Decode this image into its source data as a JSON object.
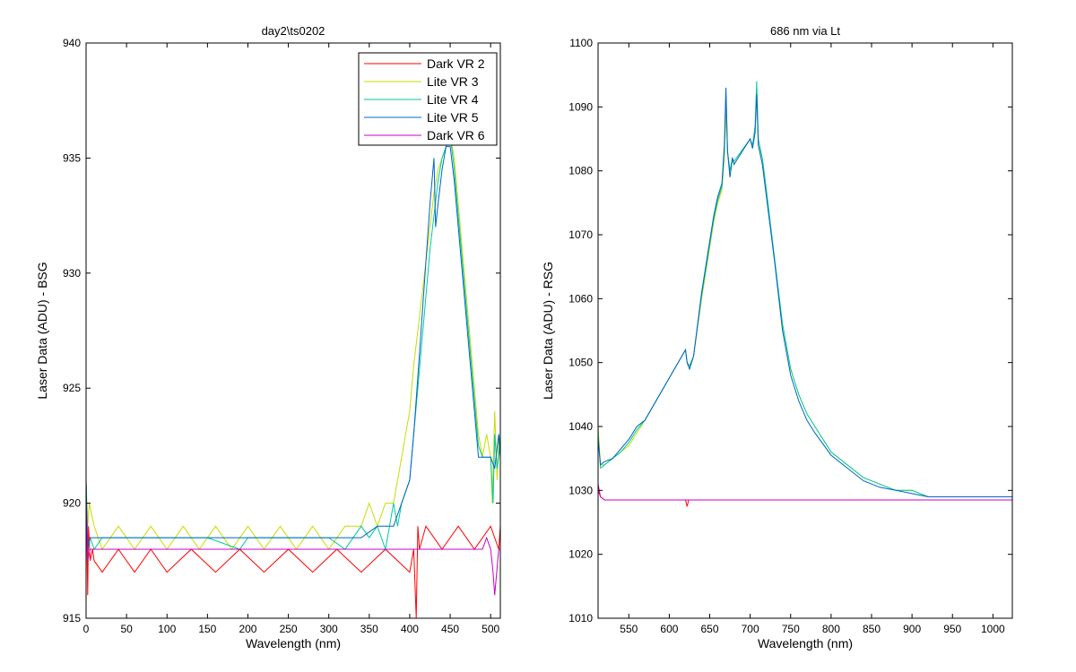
{
  "chart_data": [
    {
      "type": "line",
      "title": "day2\\ts0202",
      "xlabel": "Wavelength (nm)",
      "ylabel": "Laser Data (ADU) - BSG",
      "xlim": [
        0,
        512
      ],
      "ylim": [
        915,
        940
      ],
      "xticks": [
        0,
        50,
        100,
        150,
        200,
        250,
        300,
        350,
        400,
        450,
        500
      ],
      "yticks": [
        915,
        920,
        925,
        930,
        935,
        940
      ],
      "legend": "top-right",
      "grid": false,
      "series": [
        {
          "name": "Dark VR 2",
          "color": "#ff0000",
          "x": [
            0,
            2,
            3,
            5,
            8,
            10,
            20,
            40,
            60,
            80,
            100,
            130,
            160,
            190,
            220,
            250,
            280,
            310,
            340,
            370,
            400,
            405,
            408,
            409,
            410,
            412,
            420,
            440,
            460,
            480,
            500,
            510,
            512
          ],
          "y": [
            921,
            916,
            919,
            917.5,
            918,
            917.5,
            917,
            918,
            917,
            918,
            917,
            918,
            917,
            918,
            917,
            918,
            917,
            918,
            917,
            918,
            917,
            918,
            915,
            917,
            919,
            918,
            919,
            918,
            919,
            918,
            919,
            918,
            919
          ]
        },
        {
          "name": "Lite VR 3",
          "color": "#c8dc00",
          "x": [
            0,
            2,
            4,
            10,
            20,
            40,
            60,
            80,
            100,
            120,
            140,
            160,
            180,
            200,
            220,
            240,
            260,
            280,
            300,
            320,
            340,
            350,
            360,
            370,
            380,
            385,
            390,
            395,
            400,
            405,
            410,
            415,
            420,
            425,
            430,
            435,
            440,
            445,
            450,
            455,
            460,
            465,
            470,
            475,
            480,
            485,
            490,
            495,
            500,
            502,
            505,
            508,
            510,
            512
          ],
          "y": [
            921,
            919,
            920,
            919,
            918,
            919,
            918,
            919,
            918,
            919,
            918,
            919,
            918,
            919,
            918,
            919,
            918,
            919,
            918,
            919,
            919,
            920,
            919,
            920,
            920,
            921,
            922,
            923,
            924,
            926,
            927.5,
            929,
            930.5,
            932,
            933.5,
            934.5,
            935,
            935.5,
            936,
            935,
            933,
            931,
            929,
            927,
            925,
            923,
            922,
            923,
            922,
            920,
            924,
            921,
            923,
            922
          ]
        },
        {
          "name": "Lite VR 4",
          "color": "#00c8a0",
          "x": [
            0,
            2,
            5,
            10,
            20,
            60,
            100,
            150,
            190,
            200,
            250,
            300,
            320,
            340,
            350,
            360,
            370,
            375,
            380,
            385,
            390,
            395,
            400,
            405,
            410,
            415,
            420,
            425,
            430,
            435,
            440,
            445,
            450,
            455,
            460,
            465,
            470,
            475,
            480,
            485,
            490,
            495,
            500,
            503,
            505,
            508,
            510,
            512
          ],
          "y": [
            921,
            918,
            918.5,
            918,
            918.5,
            918.5,
            918.5,
            918.5,
            918,
            918.5,
            918.5,
            918.5,
            918,
            919,
            918.5,
            919,
            918,
            919,
            920,
            919,
            920,
            920.5,
            921,
            923,
            925,
            927,
            929,
            931,
            932.5,
            934,
            935,
            935.5,
            936,
            934.5,
            932.5,
            930.5,
            928.5,
            926.5,
            924.5,
            922.5,
            922,
            922,
            922,
            920,
            923,
            921.5,
            922,
            923
          ]
        },
        {
          "name": "Lite VR 5",
          "color": "#0064c8",
          "x": [
            0,
            2,
            5,
            10,
            20,
            60,
            100,
            150,
            200,
            250,
            300,
            340,
            360,
            380,
            390,
            395,
            400,
            405,
            410,
            415,
            420,
            425,
            430,
            432,
            435,
            440,
            445,
            450,
            455,
            460,
            465,
            470,
            475,
            480,
            485,
            490,
            495,
            500,
            505,
            510,
            512
          ],
          "y": [
            921,
            918,
            918.5,
            918.5,
            918.5,
            918.5,
            918.5,
            918.5,
            918.5,
            918.5,
            918.5,
            918.5,
            919,
            919,
            920,
            920.5,
            921,
            923,
            925.5,
            928,
            930.5,
            933,
            935,
            932,
            933,
            934.5,
            935.5,
            935.5,
            934,
            932,
            930,
            928,
            926,
            924,
            922,
            922,
            922,
            922,
            921.5,
            923,
            922
          ]
        },
        {
          "name": "Dark VR 6",
          "color": "#c800c8",
          "x": [
            0,
            2,
            5,
            10,
            100,
            200,
            300,
            400,
            490,
            495,
            500,
            503,
            505,
            510,
            512
          ],
          "y": [
            920,
            917.5,
            918,
            918,
            918,
            918,
            918,
            918,
            918,
            918.5,
            918,
            917,
            916,
            918,
            918
          ]
        }
      ]
    },
    {
      "type": "line",
      "title": "686 nm via Lt",
      "xlabel": "Wavelength (nm)",
      "ylabel": "Laser Data (ADU) - RSG",
      "xlim": [
        512,
        1024
      ],
      "ylim": [
        1010,
        1100
      ],
      "xticks": [
        550,
        600,
        650,
        700,
        750,
        800,
        850,
        900,
        950,
        1000
      ],
      "yticks": [
        1010,
        1020,
        1030,
        1040,
        1050,
        1060,
        1070,
        1080,
        1090,
        1100
      ],
      "grid": false,
      "series": [
        {
          "name": "Lite VR 3",
          "color": "#c8dc00",
          "x": [
            512,
            515,
            520,
            530,
            540,
            550,
            560,
            570,
            620,
            622,
            625,
            630,
            640,
            650,
            655,
            660,
            665,
            668,
            670,
            672,
            675,
            678,
            680,
            700,
            703,
            706,
            708,
            710,
            715,
            720,
            730,
            740,
            750,
            760,
            770,
            780,
            800,
            820,
            840,
            860,
            880,
            900,
            920,
            940,
            960,
            980,
            1000,
            1020,
            1024
          ],
          "y": [
            1040,
            1034,
            1034,
            1035,
            1036,
            1037,
            1039,
            1041,
            1052,
            1050,
            1049,
            1051,
            1060,
            1068,
            1072,
            1075,
            1077,
            1082,
            1089,
            1083,
            1080,
            1082,
            1081,
            1085,
            1084,
            1086,
            1093,
            1084,
            1082,
            1077,
            1066,
            1056,
            1049,
            1045,
            1042,
            1040,
            1036,
            1034,
            1032,
            1031,
            1030,
            1030,
            1029,
            1029,
            1029,
            1029,
            1029,
            1029,
            1029
          ]
        },
        {
          "name": "Lite VR 4",
          "color": "#00c8a0",
          "x": [
            512,
            515,
            520,
            530,
            540,
            550,
            560,
            570,
            620,
            622,
            625,
            630,
            640,
            650,
            655,
            660,
            665,
            668,
            670,
            672,
            675,
            678,
            680,
            700,
            703,
            706,
            708,
            710,
            715,
            720,
            730,
            740,
            750,
            760,
            770,
            780,
            800,
            820,
            840,
            860,
            880,
            900,
            920,
            940,
            960,
            980,
            1000,
            1020,
            1024
          ],
          "y": [
            1039,
            1033.5,
            1034,
            1035,
            1036,
            1037.5,
            1039.5,
            1041,
            1052,
            1050,
            1049.5,
            1051,
            1060.5,
            1068.5,
            1072.5,
            1075.5,
            1077.5,
            1083,
            1092,
            1083,
            1080,
            1082,
            1081.5,
            1085,
            1084,
            1087,
            1094,
            1085,
            1082,
            1077,
            1066.5,
            1056,
            1049,
            1045,
            1042,
            1040,
            1036,
            1034,
            1032,
            1031,
            1030,
            1030,
            1029,
            1029,
            1029,
            1029,
            1029,
            1029,
            1029
          ]
        },
        {
          "name": "Lite VR 5",
          "color": "#0064c8",
          "x": [
            512,
            515,
            520,
            530,
            540,
            550,
            560,
            570,
            620,
            622,
            625,
            630,
            640,
            650,
            655,
            660,
            665,
            668,
            670,
            672,
            675,
            678,
            680,
            700,
            703,
            706,
            708,
            710,
            715,
            720,
            730,
            740,
            750,
            760,
            770,
            780,
            800,
            820,
            840,
            860,
            880,
            900,
            920,
            940,
            960,
            980,
            1000,
            1020,
            1024
          ],
          "y": [
            1038,
            1034,
            1034.5,
            1035,
            1036.5,
            1038,
            1040,
            1041,
            1052,
            1050,
            1049,
            1051,
            1061,
            1069,
            1073,
            1076,
            1078,
            1084,
            1093,
            1083,
            1079,
            1082,
            1081,
            1085,
            1083.5,
            1086,
            1092,
            1084,
            1081,
            1076,
            1066,
            1055,
            1048,
            1044,
            1041,
            1039,
            1035.5,
            1033.5,
            1031.5,
            1030.5,
            1030,
            1029.5,
            1029,
            1029,
            1029,
            1029,
            1029,
            1029,
            1029
          ]
        },
        {
          "name": "Dark VR 2",
          "color": "#ff0000",
          "x": [
            512,
            515,
            520,
            600,
            620,
            622,
            624,
            700,
            800,
            900,
            1000,
            1024
          ],
          "y": [
            1030,
            1029,
            1028.5,
            1028.5,
            1028.5,
            1027.5,
            1028.5,
            1028.5,
            1028.5,
            1028.5,
            1028.5,
            1028.5
          ]
        },
        {
          "name": "Dark VR 6",
          "color": "#c800c8",
          "x": [
            512,
            515,
            520,
            600,
            700,
            800,
            900,
            1000,
            1024
          ],
          "y": [
            1031,
            1029,
            1028.5,
            1028.5,
            1028.5,
            1028.5,
            1028.5,
            1028.5,
            1028.5
          ]
        }
      ]
    }
  ]
}
